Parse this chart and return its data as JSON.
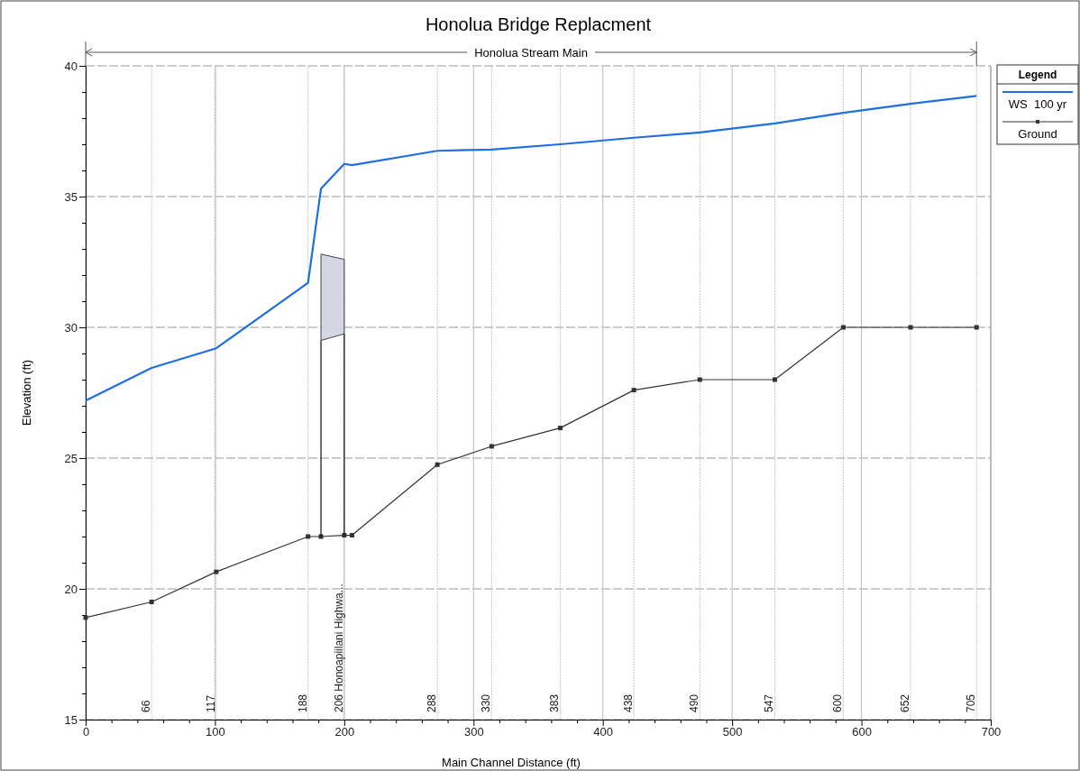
{
  "chart_data": {
    "type": "line",
    "title": "Honolua Bridge Replacment",
    "xlabel": "Main Channel Distance (ft)",
    "ylabel": "Elevation (ft)",
    "legend_title": "Legend",
    "annotations": [
      "Honolua Stream Main",
      "66",
      "117",
      "188",
      "206 Honoapiilani Highwa...",
      "288",
      "330",
      "383",
      "438",
      "490",
      "547",
      "600",
      "652",
      "705"
    ],
    "ref_lines": [
      {
        "axis": "x",
        "value": 51
      },
      {
        "axis": "x",
        "value": 101
      },
      {
        "axis": "x",
        "value": 172
      },
      {
        "axis": "x",
        "value": 200
      },
      {
        "axis": "x",
        "value": 272
      },
      {
        "axis": "x",
        "value": 314
      },
      {
        "axis": "x",
        "value": 367
      },
      {
        "axis": "x",
        "value": 424
      },
      {
        "axis": "x",
        "value": 475
      },
      {
        "axis": "x",
        "value": 533
      },
      {
        "axis": "x",
        "value": 586
      },
      {
        "axis": "x",
        "value": 638
      },
      {
        "axis": "x",
        "value": 689
      }
    ],
    "xlim": [
      0,
      700
    ],
    "ylim": [
      15,
      40
    ],
    "xticks": [
      0,
      {
        "value": 20,
        "label": null
      },
      {
        "value": 40,
        "label": null
      },
      {
        "value": 60,
        "label": null
      },
      {
        "value": 80,
        "label": null
      },
      100,
      {
        "value": 120,
        "label": null
      },
      {
        "value": 140,
        "label": null
      },
      {
        "value": 160,
        "label": null
      },
      {
        "value": 180,
        "label": null
      },
      200,
      {
        "value": 220,
        "label": null
      },
      {
        "value": 240,
        "label": null
      },
      {
        "value": 260,
        "label": null
      },
      {
        "value": 280,
        "label": null
      },
      300,
      {
        "value": 320,
        "label": null
      },
      {
        "value": 340,
        "label": null
      },
      {
        "value": 360,
        "label": null
      },
      {
        "value": 380,
        "label": null
      },
      400,
      {
        "value": 420,
        "label": null
      },
      {
        "value": 440,
        "label": null
      },
      {
        "value": 460,
        "label": null
      },
      {
        "value": 480,
        "label": null
      },
      500,
      {
        "value": 520,
        "label": null
      },
      {
        "value": 540,
        "label": null
      },
      {
        "value": 560,
        "label": null
      },
      {
        "value": 580,
        "label": null
      },
      600,
      {
        "value": 620,
        "label": null
      },
      {
        "value": 640,
        "label": null
      },
      {
        "value": 660,
        "label": null
      },
      {
        "value": 680,
        "label": null
      },
      700
    ],
    "yticks": [
      15,
      {
        "value": 16,
        "label": null
      },
      {
        "value": 17,
        "label": null
      },
      {
        "value": 18,
        "label": null
      },
      {
        "value": 19,
        "label": null
      },
      20,
      {
        "value": 21,
        "label": null
      },
      {
        "value": 22,
        "label": null
      },
      {
        "value": 23,
        "label": null
      },
      {
        "value": 24,
        "label": null
      },
      25,
      {
        "value": 26,
        "label": null
      },
      {
        "value": 27,
        "label": null
      },
      {
        "value": 28,
        "label": null
      },
      {
        "value": 29,
        "label": null
      },
      30,
      {
        "value": 31,
        "label": null
      },
      {
        "value": 32,
        "label": null
      },
      {
        "value": 33,
        "label": null
      },
      {
        "value": 34,
        "label": null
      },
      35,
      {
        "value": 36,
        "label": null
      },
      {
        "value": 37,
        "label": null
      },
      {
        "value": 38,
        "label": null
      },
      {
        "value": 39,
        "label": null
      },
      40
    ],
    "grid": true,
    "legend": "top right",
    "series": [
      {
        "name": "WS  100 yr",
        "type": "line",
        "color": "#1f6fe0",
        "marker": "none",
        "x": [
          0,
          51,
          101,
          172,
          182,
          200,
          206,
          272,
          314,
          367,
          424,
          475,
          533,
          586,
          638,
          689
        ],
        "values": [
          27.2,
          28.45,
          29.2,
          31.7,
          35.3,
          36.25,
          36.2,
          36.75,
          36.8,
          37.0,
          37.25,
          37.45,
          37.8,
          38.2,
          38.55,
          38.85
        ]
      },
      {
        "name": "Ground",
        "type": "line",
        "color": "#333333",
        "marker": "square",
        "x": [
          0,
          51,
          101,
          172,
          182,
          200,
          206,
          272,
          314,
          367,
          424,
          475,
          533,
          586,
          638,
          689
        ],
        "values": [
          18.9,
          19.5,
          20.65,
          22.0,
          22.0,
          22.05,
          22.05,
          24.75,
          25.45,
          26.15,
          27.6,
          28.0,
          28.0,
          30.0,
          30.0,
          30.0
        ]
      },
      {
        "type": "area",
        "color": "#d4d7e3",
        "x": [
          182,
          182,
          200,
          200
        ],
        "values": [
          29.5,
          32.8,
          32.6,
          29.75
        ]
      },
      {
        "type": "line",
        "color": "#111111",
        "marker": "none",
        "x": [
          182,
          182
        ],
        "values": [
          22.0,
          29.5
        ]
      },
      {
        "type": "line",
        "color": "#111111",
        "marker": "none",
        "x": [
          200,
          200
        ],
        "values": [
          22.05,
          29.75
        ]
      }
    ]
  }
}
